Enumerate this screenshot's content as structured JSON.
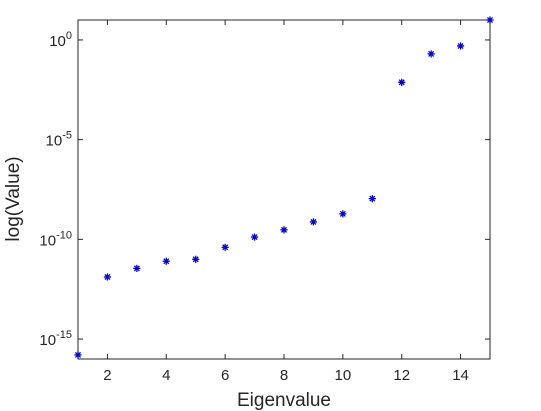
{
  "chart_data": {
    "type": "scatter",
    "title": "",
    "xlabel": "Eigenvalue",
    "ylabel": "log(Value)",
    "xlim": [
      1,
      15
    ],
    "ylim": [
      1e-16,
      10
    ],
    "yscale": "log",
    "grid": false,
    "legend": "none",
    "marker": "asterisk",
    "marker_color": "#0000cc",
    "x_ticks": [
      2,
      4,
      6,
      8,
      10,
      12,
      14
    ],
    "x_tick_labels": [
      "2",
      "4",
      "6",
      "8",
      "10",
      "12",
      "14"
    ],
    "y_ticks": [
      1e-15,
      1e-10,
      1e-05,
      1
    ],
    "y_tick_labels": [
      {
        "base": "10",
        "exp": "-15"
      },
      {
        "base": "10",
        "exp": "-10"
      },
      {
        "base": "10",
        "exp": "-5"
      },
      {
        "base": "10",
        "exp": "0"
      }
    ],
    "series": [
      {
        "x": [
          1,
          2,
          3,
          4,
          5,
          6,
          7,
          8,
          9,
          10,
          11,
          12,
          13,
          14,
          15
        ],
        "y": [
          1.6e-16,
          1.3e-12,
          3.5e-12,
          8e-12,
          1e-11,
          4e-11,
          1.3e-10,
          3e-10,
          7.5e-10,
          1.9e-09,
          1.1e-08,
          0.0075,
          0.2,
          0.5,
          10
        ]
      }
    ]
  }
}
